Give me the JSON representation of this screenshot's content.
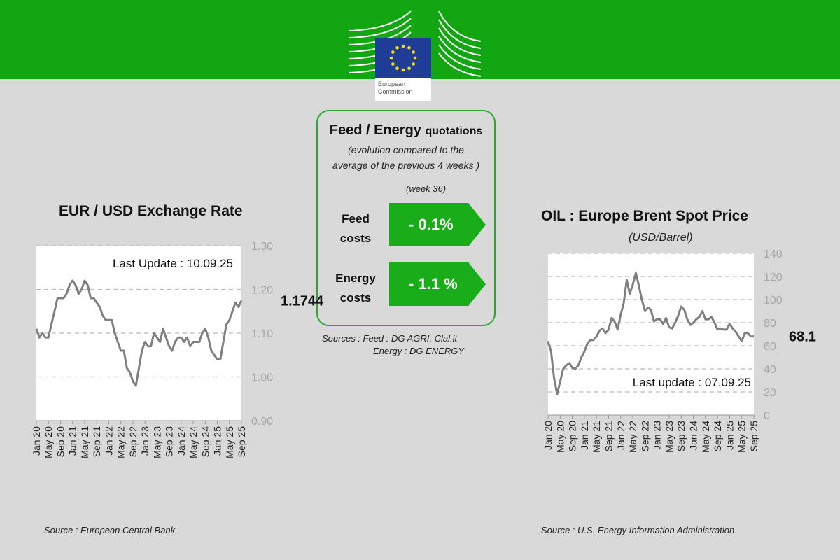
{
  "header": {
    "logo_text": "European Commission",
    "brand_color": "#12a612"
  },
  "panel": {
    "title_bold": "Feed / Energy",
    "title_rest": "quotations",
    "subtitle_1": "(evolution compared to the",
    "subtitle_2": "average of the previous 4 weeks )",
    "week": "(week 36)",
    "rows": [
      {
        "label_1": "Feed",
        "label_2": "costs",
        "value": "- 0.1%"
      },
      {
        "label_1": "Energy",
        "label_2": "costs",
        "value": "- 1.1 %"
      }
    ],
    "sources_1": "Sources :   Feed : DG AGRI, Clal.it",
    "sources_2": "Energy : DG ENERGY"
  },
  "chart_data": [
    {
      "type": "line",
      "title": "EUR / USD Exchange Rate",
      "annotation": "Last Update : 10.09.25",
      "last_value_label": "1.1744",
      "source": "Source : European Central Bank",
      "ylim": [
        0.9,
        1.3
      ],
      "yticks": [
        "1.30",
        "1.20",
        "1.10",
        "1.00",
        "0.90"
      ],
      "grid": true,
      "xticks": [
        "Jan 20",
        "May 20",
        "Sep 20",
        "Jan 21",
        "May 21",
        "Sep 21",
        "Jan 22",
        "May 22",
        "Sep 22",
        "Jan 23",
        "May 23",
        "Sep 23",
        "Jan 24",
        "May 24",
        "Sep 24",
        "Jan 25",
        "May 25",
        "Sep 25"
      ],
      "series": [
        {
          "values": [
            1.11,
            1.09,
            1.1,
            1.09,
            1.09,
            1.12,
            1.15,
            1.18,
            1.18,
            1.18,
            1.19,
            1.21,
            1.22,
            1.21,
            1.19,
            1.2,
            1.22,
            1.21,
            1.18,
            1.18,
            1.17,
            1.16,
            1.14,
            1.13,
            1.13,
            1.13,
            1.1,
            1.08,
            1.06,
            1.06,
            1.02,
            1.01,
            0.99,
            0.98,
            1.02,
            1.06,
            1.08,
            1.07,
            1.07,
            1.1,
            1.09,
            1.08,
            1.11,
            1.09,
            1.07,
            1.06,
            1.08,
            1.09,
            1.09,
            1.08,
            1.09,
            1.07,
            1.08,
            1.08,
            1.08,
            1.1,
            1.11,
            1.09,
            1.06,
            1.05,
            1.04,
            1.04,
            1.08,
            1.12,
            1.13,
            1.15,
            1.17,
            1.16,
            1.1744
          ]
        }
      ]
    },
    {
      "type": "line",
      "title": "OIL : Europe Brent Spot Price",
      "subtitle": "(USD/Barrel)",
      "annotation": "Last update :  07.09.25",
      "last_value_label": "68.1",
      "source": "Source : U.S. Energy Information Administration",
      "ylim": [
        0,
        140
      ],
      "yticks": [
        "140",
        "120",
        "100",
        "80",
        "60",
        "40",
        "20",
        "0"
      ],
      "grid": true,
      "xticks": [
        "Jan 20",
        "May 20",
        "Sep 20",
        "Jan 21",
        "May 21",
        "Sep 21",
        "Jan 22",
        "May 22",
        "Sep 22",
        "Jan 23",
        "May 23",
        "Sep 23",
        "Jan 24",
        "May 24",
        "Sep 24",
        "Jan 25",
        "May 25",
        "Sep 25"
      ],
      "series": [
        {
          "values": [
            64,
            55,
            32,
            18,
            29,
            40,
            43,
            45,
            41,
            40,
            43,
            50,
            55,
            62,
            65,
            65,
            68,
            73,
            75,
            71,
            74,
            84,
            81,
            74,
            87,
            97,
            117,
            105,
            113,
            123,
            112,
            100,
            90,
            93,
            91,
            81,
            83,
            83,
            79,
            84,
            76,
            75,
            80,
            86,
            94,
            91,
            83,
            78,
            80,
            83,
            85,
            90,
            83,
            83,
            85,
            80,
            74,
            75,
            74,
            74,
            79,
            75,
            72,
            68,
            64,
            71,
            71,
            68,
            68.1
          ]
        }
      ]
    }
  ]
}
